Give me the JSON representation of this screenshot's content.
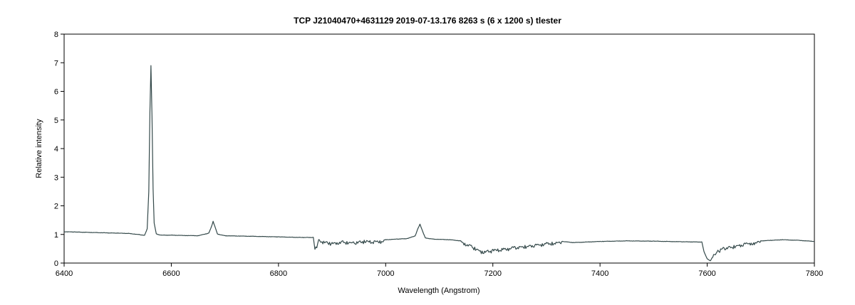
{
  "chart_data": {
    "type": "line",
    "title": "TCP J21040470+4631129   2019-07-13.176   8263 s (6 x 1200 s)   tlester",
    "xlabel": "Wavelength (Angstrom)",
    "ylabel": "Relative intensity",
    "xlim": [
      6400,
      7800
    ],
    "ylim": [
      0,
      8
    ],
    "x_ticks": [
      6400,
      6600,
      6800,
      7000,
      7200,
      7400,
      7600,
      7800
    ],
    "y_ticks": [
      0,
      1,
      2,
      3,
      4,
      5,
      6,
      7,
      8
    ],
    "grid": false,
    "line_color": "#34494a",
    "series": [
      {
        "points": [
          [
            6400,
            1.1
          ],
          [
            6420,
            1.09
          ],
          [
            6440,
            1.08
          ],
          [
            6460,
            1.07
          ],
          [
            6480,
            1.06
          ],
          [
            6500,
            1.05
          ],
          [
            6520,
            1.04
          ],
          [
            6540,
            1.0
          ],
          [
            6550,
            0.97
          ],
          [
            6555,
            1.2
          ],
          [
            6558,
            2.5
          ],
          [
            6560,
            5.2
          ],
          [
            6562,
            6.9
          ],
          [
            6564,
            5.1
          ],
          [
            6566,
            2.6
          ],
          [
            6568,
            1.4
          ],
          [
            6572,
            1.02
          ],
          [
            6580,
            0.98
          ],
          [
            6600,
            0.98
          ],
          [
            6620,
            0.97
          ],
          [
            6650,
            0.96
          ],
          [
            6670,
            1.05
          ],
          [
            6675,
            1.28
          ],
          [
            6678,
            1.46
          ],
          [
            6681,
            1.3
          ],
          [
            6686,
            1.02
          ],
          [
            6700,
            0.96
          ],
          [
            6750,
            0.94
          ],
          [
            6800,
            0.92
          ],
          [
            6840,
            0.9
          ],
          [
            6865,
            0.9
          ],
          [
            6868,
            0.48
          ],
          [
            6875,
            0.82
          ],
          [
            6900,
            0.72
          ],
          [
            6920,
            0.78
          ],
          [
            6940,
            0.74
          ],
          [
            6960,
            0.8
          ],
          [
            6980,
            0.78
          ],
          [
            7000,
            0.82
          ],
          [
            7020,
            0.84
          ],
          [
            7040,
            0.86
          ],
          [
            7055,
            0.95
          ],
          [
            7060,
            1.2
          ],
          [
            7064,
            1.36
          ],
          [
            7068,
            1.16
          ],
          [
            7074,
            0.88
          ],
          [
            7090,
            0.84
          ],
          [
            7120,
            0.82
          ],
          [
            7140,
            0.78
          ],
          [
            7160,
            0.62
          ],
          [
            7180,
            0.42
          ],
          [
            7200,
            0.48
          ],
          [
            7220,
            0.52
          ],
          [
            7240,
            0.58
          ],
          [
            7260,
            0.62
          ],
          [
            7280,
            0.66
          ],
          [
            7300,
            0.72
          ],
          [
            7330,
            0.76
          ],
          [
            7350,
            0.72
          ],
          [
            7400,
            0.76
          ],
          [
            7450,
            0.78
          ],
          [
            7500,
            0.77
          ],
          [
            7550,
            0.75
          ],
          [
            7590,
            0.74
          ],
          [
            7594,
            0.4
          ],
          [
            7600,
            0.15
          ],
          [
            7606,
            0.08
          ],
          [
            7612,
            0.3
          ],
          [
            7620,
            0.45
          ],
          [
            7630,
            0.55
          ],
          [
            7650,
            0.62
          ],
          [
            7670,
            0.7
          ],
          [
            7700,
            0.78
          ],
          [
            7740,
            0.82
          ],
          [
            7770,
            0.8
          ],
          [
            7800,
            0.76
          ]
        ]
      }
    ]
  }
}
